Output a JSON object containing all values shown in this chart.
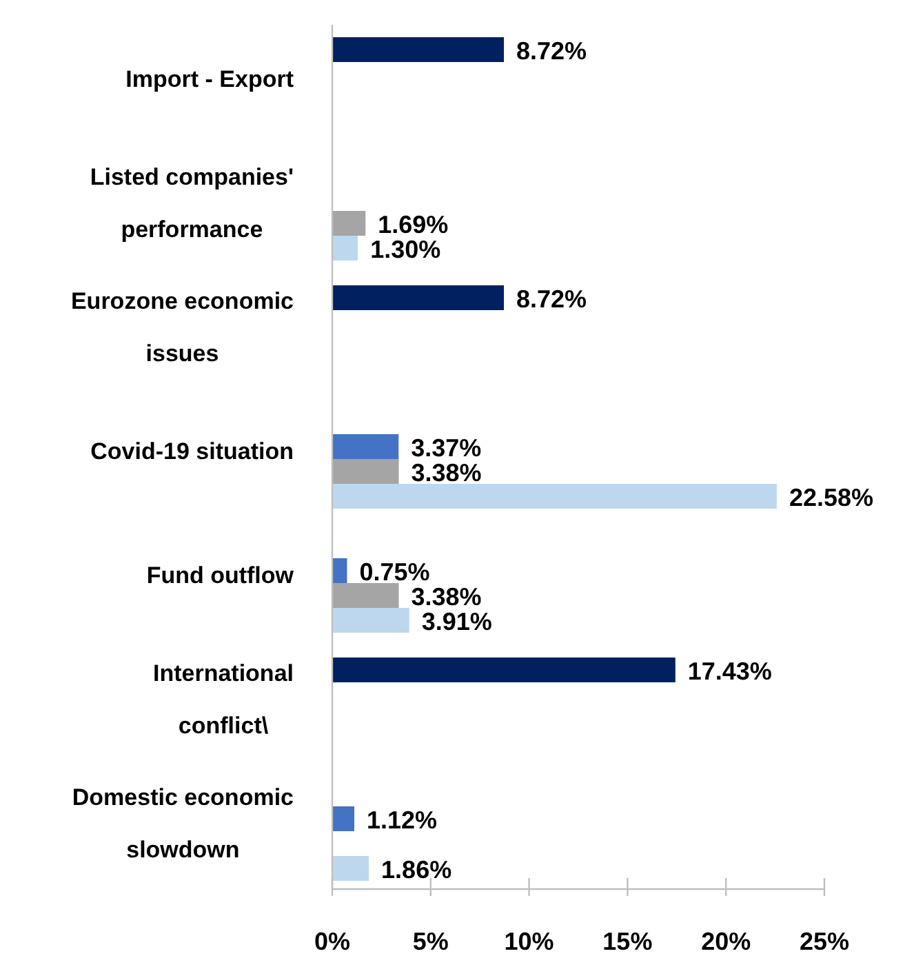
{
  "chart_data": {
    "type": "bar",
    "orientation": "horizontal",
    "categories": [
      "Import - Export",
      "Listed companies'\nperformance",
      "Eurozone economic\nissues",
      "Covid-19 situation",
      "Fund outflow",
      "International\nconflict\\",
      "Domestic economic\nslowdown"
    ],
    "series": [
      {
        "color": "#002060",
        "values": [
          8.72,
          null,
          8.72,
          null,
          null,
          17.43,
          null
        ],
        "value_labels": [
          "8.72%",
          null,
          "8.72%",
          null,
          null,
          "17.43%",
          null
        ]
      },
      {
        "color": "#4472c4",
        "values": [
          null,
          null,
          null,
          3.37,
          0.75,
          null,
          1.12
        ],
        "value_labels": [
          null,
          null,
          null,
          "3.37%",
          "0.75%",
          null,
          "1.12%"
        ]
      },
      {
        "color": "#a5a5a5",
        "values": [
          null,
          1.69,
          null,
          3.38,
          3.38,
          null,
          null
        ],
        "value_labels": [
          null,
          "1.69%",
          null,
          "3.38%",
          "3.38%",
          null,
          null
        ]
      },
      {
        "color": "#bdd7ee",
        "values": [
          null,
          1.3,
          null,
          22.58,
          3.91,
          null,
          1.86
        ],
        "value_labels": [
          null,
          "1.30%",
          null,
          "22.58%",
          "3.91%",
          null,
          "1.86%"
        ]
      }
    ],
    "xlim": [
      0,
      25
    ],
    "xticks": [
      {
        "value": 0,
        "label": "0%"
      },
      {
        "value": 5,
        "label": "5%"
      },
      {
        "value": 10,
        "label": "10%"
      },
      {
        "value": 15,
        "label": "15%"
      },
      {
        "value": 20,
        "label": "20%"
      },
      {
        "value": 25,
        "label": "25%"
      }
    ],
    "grid": false
  }
}
